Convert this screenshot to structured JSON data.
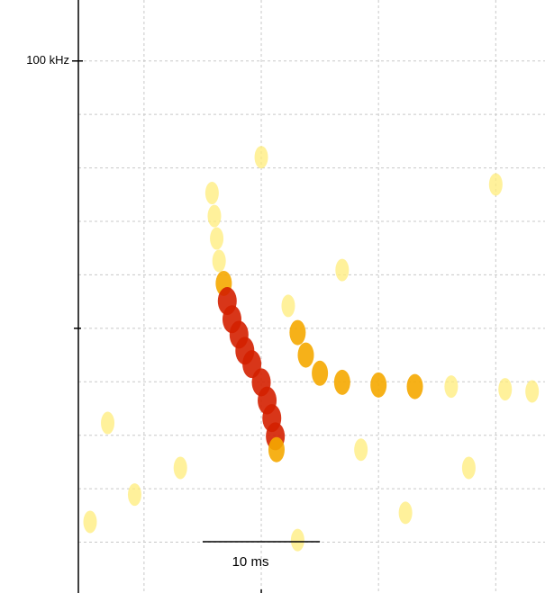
{
  "chart_data": {
    "type": "spectrogram",
    "xlim": [
      -5.6,
      34.2
    ],
    "ylim": [
      0.5,
      111.4
    ],
    "xgrid": [
      0,
      10,
      20,
      30
    ],
    "ygrid": [
      10,
      20,
      30,
      40,
      50,
      60,
      70,
      80,
      90,
      100
    ],
    "yticks": [
      {
        "value": 100,
        "label": "100 kHz"
      }
    ],
    "minor_yticks": [
      50
    ],
    "minor_xticks": [
      10
    ],
    "scale_bar": {
      "start": 5,
      "end": 15,
      "label": "10 ms"
    },
    "level_colors": [
      "#ffec7a",
      "#f5a800",
      "#d42000"
    ],
    "points": [
      [
        5.8,
        75.3,
        1
      ],
      [
        6.0,
        71.0,
        1
      ],
      [
        6.2,
        66.8,
        1
      ],
      [
        6.4,
        62.6,
        1
      ],
      [
        6.8,
        58.4,
        2
      ],
      [
        7.1,
        55.1,
        3
      ],
      [
        7.5,
        51.7,
        3
      ],
      [
        8.1,
        48.8,
        3
      ],
      [
        8.6,
        45.8,
        3
      ],
      [
        9.2,
        43.3,
        3
      ],
      [
        10.0,
        39.9,
        3
      ],
      [
        10.5,
        36.5,
        3
      ],
      [
        10.9,
        33.2,
        3
      ],
      [
        11.2,
        29.8,
        3
      ],
      [
        11.3,
        27.3,
        2
      ],
      [
        10.0,
        82.0,
        1
      ],
      [
        12.3,
        54.2,
        1
      ],
      [
        13.1,
        49.2,
        2
      ],
      [
        13.8,
        45.0,
        2
      ],
      [
        15.0,
        41.6,
        2
      ],
      [
        16.9,
        39.9,
        2
      ],
      [
        20.0,
        39.4,
        2
      ],
      [
        23.1,
        39.1,
        2
      ],
      [
        26.2,
        39.1,
        1
      ],
      [
        30.8,
        38.6,
        1
      ],
      [
        33.1,
        38.2,
        1
      ],
      [
        -3.1,
        32.3,
        1
      ],
      [
        -0.8,
        18.9,
        1
      ],
      [
        3.1,
        23.9,
        1
      ],
      [
        18.5,
        27.3,
        1
      ],
      [
        22.3,
        15.5,
        1
      ],
      [
        27.7,
        23.9,
        1
      ],
      [
        16.9,
        60.9,
        1
      ],
      [
        30.0,
        76.9,
        1
      ],
      [
        -4.6,
        13.8,
        1
      ],
      [
        13.1,
        10.4,
        1
      ]
    ]
  }
}
